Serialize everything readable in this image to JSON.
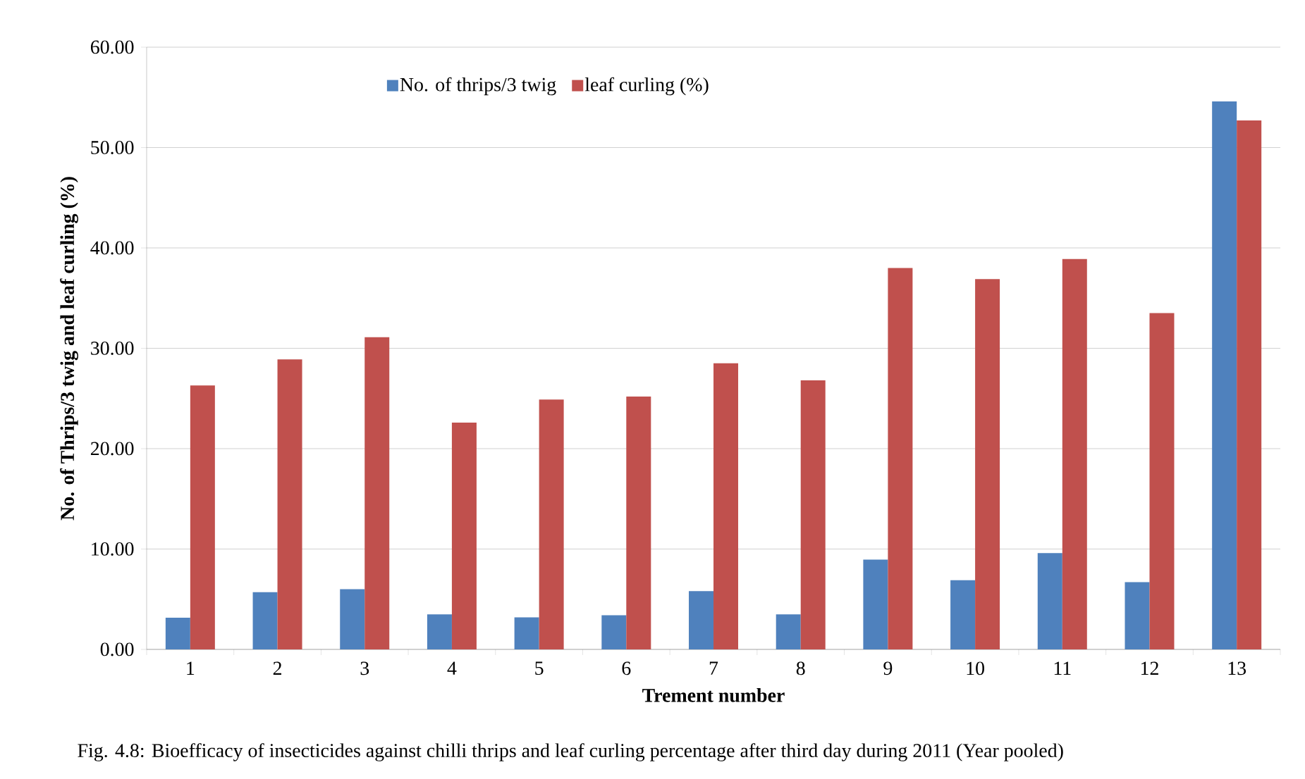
{
  "chart_data": {
    "type": "bar",
    "categories": [
      "1",
      "2",
      "3",
      "4",
      "5",
      "6",
      "7",
      "8",
      "9",
      "10",
      "11",
      "12",
      "13"
    ],
    "series": [
      {
        "name": "No. of thrips/3 twig",
        "color": "#4f81bd",
        "values": [
          3.15,
          5.7,
          6.0,
          3.5,
          3.2,
          3.4,
          5.8,
          3.5,
          8.95,
          6.9,
          9.6,
          6.7,
          54.6
        ]
      },
      {
        "name": "leaf curling (%)",
        "color": "#c0504d",
        "values": [
          26.3,
          28.9,
          31.1,
          22.6,
          24.9,
          25.2,
          28.5,
          26.8,
          38.0,
          36.9,
          38.9,
          33.5,
          52.7
        ]
      }
    ],
    "xlabel": "Trement number",
    "ylabel": "No. of Thrips/3 twig and leaf curling (%)",
    "ylim": [
      0,
      60
    ],
    "yticks": [
      {
        "value": 0,
        "label": "0.00"
      },
      {
        "value": 10,
        "label": "10.00"
      },
      {
        "value": 20,
        "label": "20.00"
      },
      {
        "value": 30,
        "label": "30.00"
      },
      {
        "value": 40,
        "label": "40.00"
      },
      {
        "value": 50,
        "label": "50.00"
      },
      {
        "value": 60,
        "label": "60.00"
      }
    ],
    "grid": "y",
    "legend": "top",
    "annotations": [
      "Fig. 4.8: Bioefficacy of insecticides against chilli thrips and leaf curling percentage after third day during 2011 (Year pooled)"
    ]
  }
}
